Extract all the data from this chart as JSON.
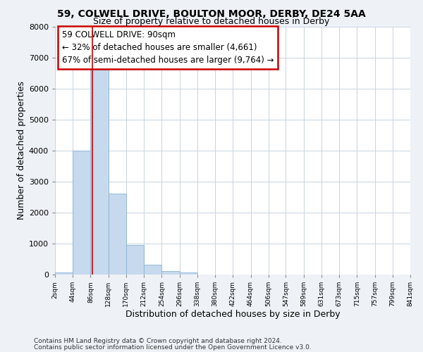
{
  "title": "59, COLWELL DRIVE, BOULTON MOOR, DERBY, DE24 5AA",
  "subtitle": "Size of property relative to detached houses in Derby",
  "xlabel": "Distribution of detached houses by size in Derby",
  "ylabel": "Number of detached properties",
  "bin_edges": [
    2,
    44,
    86,
    128,
    170,
    212,
    254,
    296,
    338,
    380,
    422,
    464,
    506,
    547,
    589,
    631,
    673,
    715,
    757,
    799,
    841
  ],
  "bar_heights": [
    60,
    4000,
    6600,
    2600,
    960,
    320,
    120,
    60,
    0,
    0,
    0,
    0,
    0,
    0,
    0,
    0,
    0,
    0,
    0,
    0
  ],
  "bar_color": "#c6d9ed",
  "bar_edge_color": "#8ab4d4",
  "property_line_x": 90,
  "property_line_color": "#cc0000",
  "ylim": [
    0,
    8000
  ],
  "yticks": [
    0,
    1000,
    2000,
    3000,
    4000,
    5000,
    6000,
    7000,
    8000
  ],
  "xtick_labels": [
    "2sqm",
    "44sqm",
    "86sqm",
    "128sqm",
    "170sqm",
    "212sqm",
    "254sqm",
    "296sqm",
    "338sqm",
    "380sqm",
    "422sqm",
    "464sqm",
    "506sqm",
    "547sqm",
    "589sqm",
    "631sqm",
    "673sqm",
    "715sqm",
    "757sqm",
    "799sqm",
    "841sqm"
  ],
  "annotation_line1": "59 COLWELL DRIVE: 90sqm",
  "annotation_line2": "← 32% of detached houses are smaller (4,661)",
  "annotation_line3": "67% of semi-detached houses are larger (9,764) →",
  "footer_line1": "Contains HM Land Registry data © Crown copyright and database right 2024.",
  "footer_line2": "Contains public sector information licensed under the Open Government Licence v3.0.",
  "background_color": "#eef2f7",
  "plot_bg_color": "#ffffff",
  "grid_color": "#c8d4e0"
}
